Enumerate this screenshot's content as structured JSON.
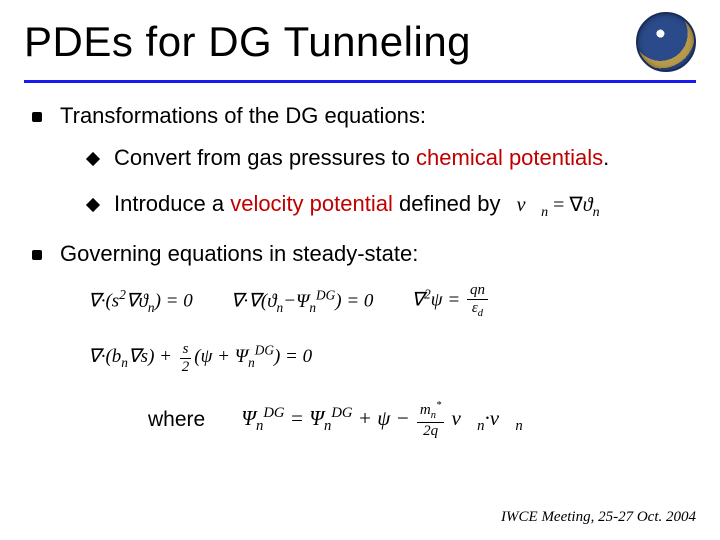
{
  "title": "PDEs for DG Tunneling",
  "colors": {
    "rule": "#1a1af0",
    "highlight": "#c00000",
    "text": "#000000",
    "background": "#ffffff"
  },
  "typography": {
    "title_fontsize": 42,
    "body_fontsize": 22,
    "footer_fontsize": 15,
    "title_font": "Arial",
    "eq_font": "Times New Roman"
  },
  "bullets": [
    {
      "text": "Transformations of the DG equations:",
      "subs": [
        {
          "lead": "Convert",
          "rest_a": " from gas pressures to ",
          "highlight": "chemical potentials",
          "rest_b": "."
        },
        {
          "lead": "Introduce",
          "rest_a": " a ",
          "highlight": "velocity potential",
          "rest_b": " defined by",
          "eq": "v⃗ₙ = ∇ϑₙ"
        }
      ]
    },
    {
      "text": "Governing equations in steady-state:"
    }
  ],
  "equations": {
    "row1": [
      "∇·(s²∇ϑₙ) = 0",
      "∇·∇(ϑₙ−Ψₙᴰᴳ) = 0",
      "∇²ψ = qn⁄εd"
    ],
    "row2": "∇·(bₙ∇s) + (s⁄2)(ψ + Ψₙᴰᴳ) = 0",
    "where_label": "where",
    "where_eq": "Ψₙᴰᴳ = Ψₙᴰᴳ + ψ − (mₙ*⁄2q) v⃗ₙ·v⃗ₙ"
  },
  "footer": "IWCE Meeting, 25-27 Oct. 2004"
}
